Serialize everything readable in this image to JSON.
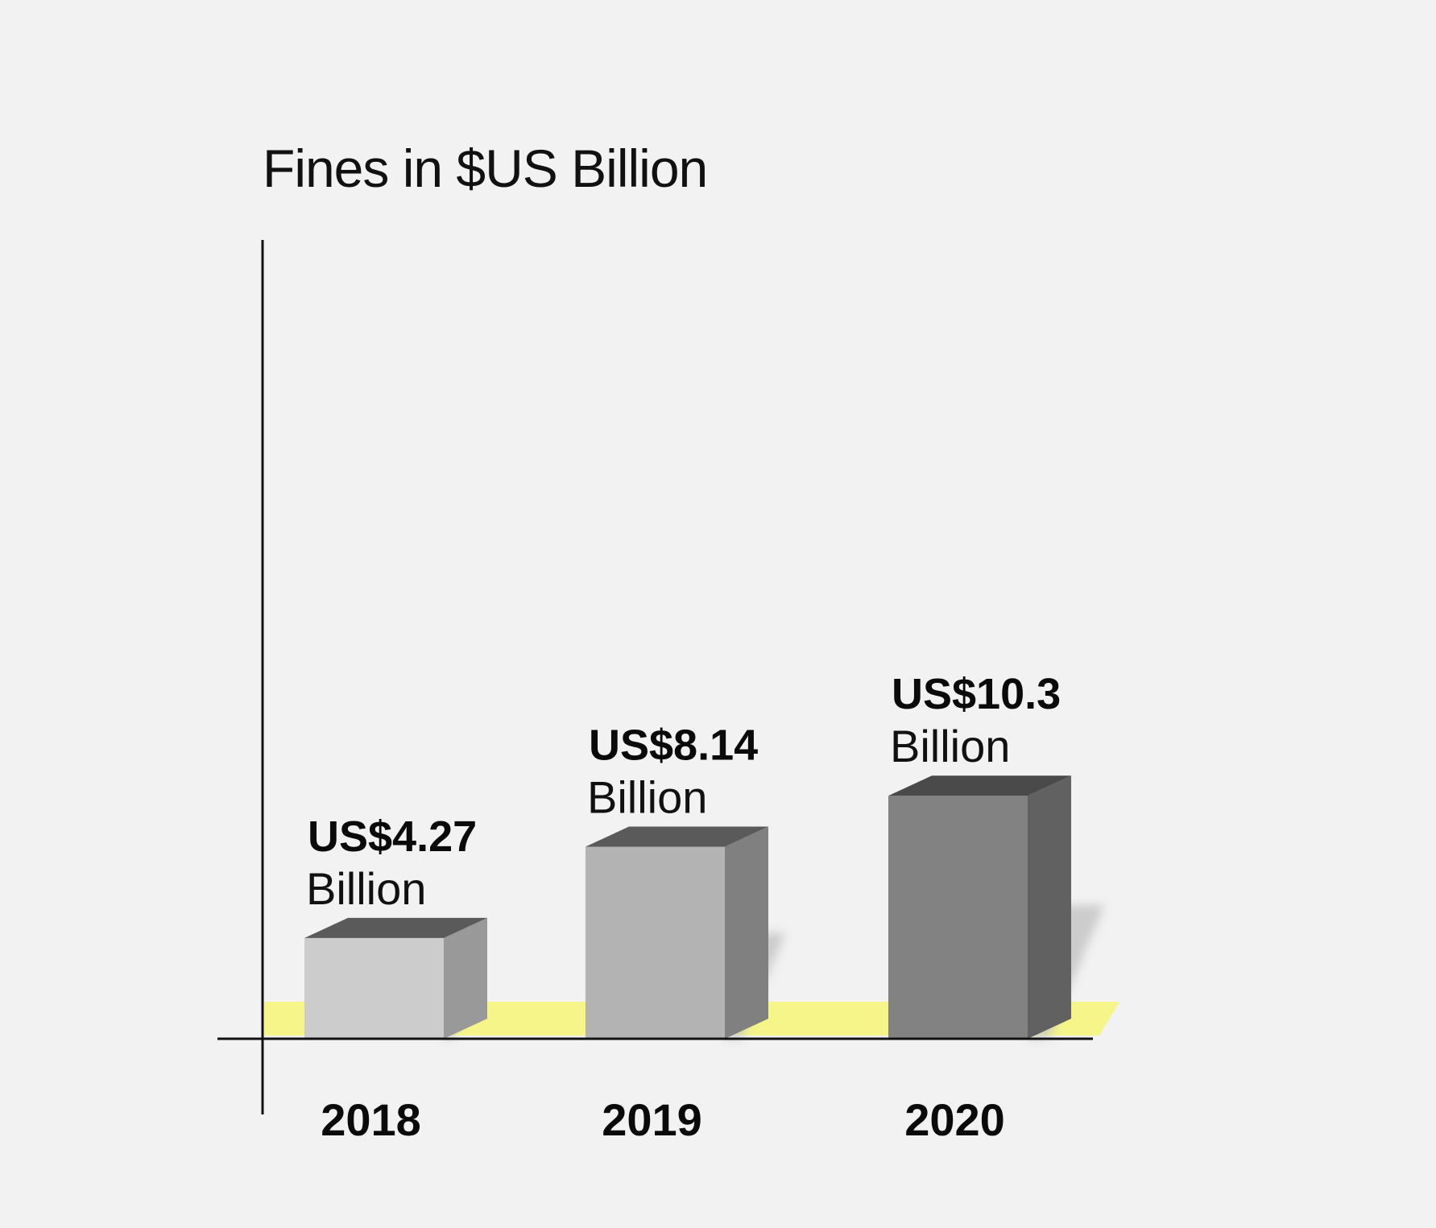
{
  "chart_data": {
    "type": "bar",
    "title": "Fines in $US Billion",
    "xlabel": "",
    "ylabel": "",
    "categories": [
      "2018",
      "2019",
      "2020"
    ],
    "values": [
      4.27,
      8.14,
      10.3
    ],
    "ylim": [
      0,
      12.7
    ],
    "grid": false,
    "legend": "none",
    "data_labels": [
      {
        "value": "US$4.27",
        "unit": "Billion"
      },
      {
        "value": "US$8.14",
        "unit": "Billion"
      },
      {
        "value": "US$10.3",
        "unit": "Billion"
      }
    ],
    "colors": {
      "bar_fronts": [
        "#cccccc",
        "#b3b3b3",
        "#828282"
      ],
      "bar_sides": [
        "#999999",
        "#808080",
        "#616161"
      ],
      "bar_tops": [
        "#5a5a5a",
        "#5a5a5a",
        "#4a4a4a"
      ],
      "floor_highlight": "#f5f58a",
      "shadow": "#c8c8c8",
      "axis": "#111111",
      "background": "#f2f2f2"
    }
  }
}
